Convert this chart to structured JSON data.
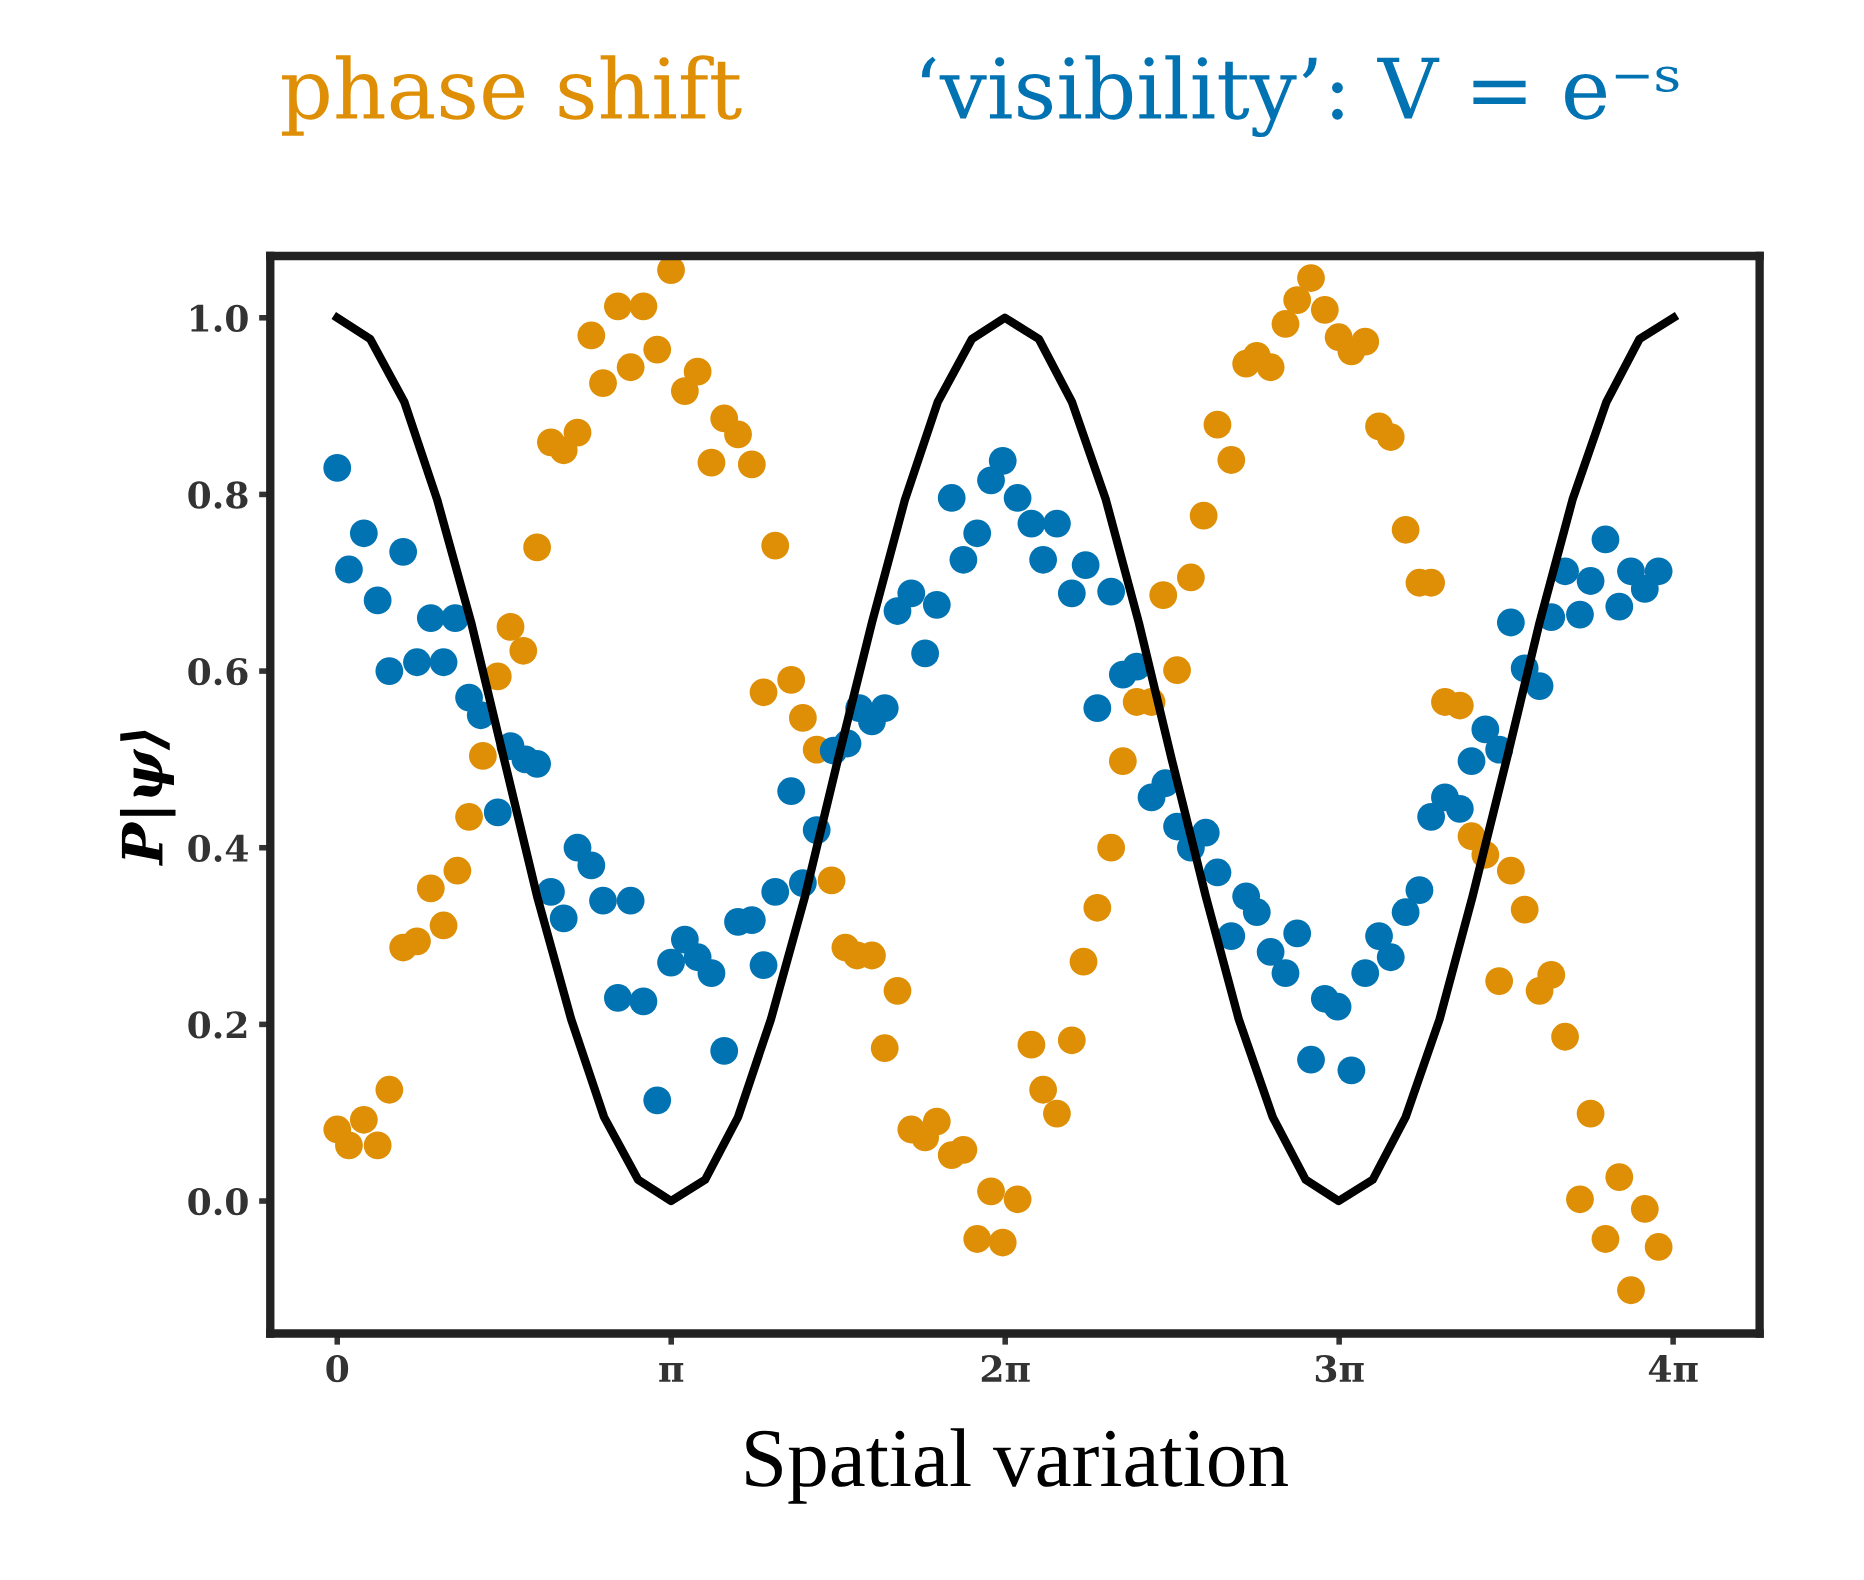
{
  "chart_data": {
    "type": "scatter",
    "xlabel": "Spatial variation",
    "ylabel": "P|ψ⟩",
    "xlim": [
      -0.63,
      13.38
    ],
    "ylim": [
      -0.15,
      1.07
    ],
    "xticks": [
      0,
      {
        "value": 3.1416,
        "label": "π"
      },
      {
        "value": 6.2832,
        "label": "2π"
      },
      {
        "value": 9.4248,
        "label": "3π"
      },
      {
        "value": 12.5664,
        "label": "4π"
      }
    ],
    "yticks": [
      {
        "value": 0,
        "label": "0.0"
      },
      0.2,
      0.4,
      0.6,
      0.8,
      {
        "value": 1,
        "label": "1.0"
      }
    ],
    "grid": false,
    "legend": false,
    "marker": "circle",
    "series": [
      {
        "name": "phase shift",
        "color": "#de8f05",
        "x": [
          0,
          0.11,
          0.25,
          0.38,
          0.49,
          0.62,
          0.75,
          0.88,
          1.0,
          1.13,
          1.24,
          1.37,
          1.51,
          1.63,
          1.75,
          1.88,
          2.01,
          2.13,
          2.26,
          2.39,
          2.5,
          2.64,
          2.76,
          2.88,
          3.01,
          3.14,
          3.27,
          3.39,
          3.52,
          3.64,
          3.77,
          3.9,
          4.01,
          4.12,
          4.27,
          4.38,
          4.51,
          4.65,
          4.78,
          4.89,
          5.03,
          5.15,
          5.27,
          5.4,
          5.53,
          5.64,
          5.78,
          5.89,
          6.02,
          6.15,
          6.26,
          6.4,
          6.53,
          6.64,
          6.77,
          6.91,
          7.02,
          7.15,
          7.28,
          7.39,
          7.52,
          7.66,
          7.77,
          7.9,
          8.03,
          8.15,
          8.28,
          8.41,
          8.55,
          8.65,
          8.78,
          8.92,
          9.03,
          9.16,
          9.29,
          9.42,
          9.54,
          9.67,
          9.8,
          9.91,
          10.05,
          10.18,
          10.29,
          10.42,
          10.56,
          10.67,
          10.8,
          10.93,
          11.04,
          11.17,
          11.31,
          11.42,
          11.55,
          11.69,
          11.79,
          11.93,
          12.06,
          12.17,
          12.3,
          12.43
        ],
        "values": [
          0.081,
          0.063,
          0.092,
          0.063,
          0.126,
          0.287,
          0.294,
          0.354,
          0.312,
          0.374,
          0.435,
          0.504,
          0.594,
          0.65,
          0.623,
          0.74,
          0.859,
          0.85,
          0.87,
          0.98,
          0.926,
          1.013,
          0.944,
          1.013,
          0.964,
          1.054,
          0.917,
          0.939,
          0.836,
          0.886,
          0.868,
          0.834,
          0.576,
          0.742,
          0.59,
          0.547,
          0.511,
          0.363,
          0.287,
          0.278,
          0.278,
          0.173,
          0.238,
          0.081,
          0.072,
          0.09,
          0.052,
          0.058,
          -0.043,
          0.011,
          -0.047,
          0.002,
          0.177,
          0.126,
          0.099,
          0.182,
          0.271,
          0.332,
          0.4,
          0.498,
          0.565,
          0.565,
          0.686,
          0.601,
          0.706,
          0.776,
          0.879,
          0.839,
          0.948,
          0.957,
          0.944,
          0.993,
          1.02,
          1.045,
          1.009,
          0.978,
          0.962,
          0.973,
          0.877,
          0.865,
          0.76,
          0.7,
          0.7,
          0.565,
          0.561,
          0.413,
          0.392,
          0.249,
          0.374,
          0.33,
          0.238,
          0.256,
          0.186,
          0.002,
          0.099,
          -0.043,
          0.027,
          -0.101,
          -0.009,
          -0.052
        ]
      },
      {
        "name": "‘visibility’: V = e⁻ˢ",
        "color": "#0173b2",
        "x": [
          0,
          0.11,
          0.25,
          0.38,
          0.49,
          0.62,
          0.75,
          0.88,
          1.0,
          1.11,
          1.24,
          1.35,
          1.51,
          1.63,
          1.77,
          1.88,
          2.01,
          2.13,
          2.26,
          2.39,
          2.5,
          2.64,
          2.76,
          2.88,
          3.01,
          3.14,
          3.27,
          3.39,
          3.52,
          3.64,
          3.77,
          3.9,
          4.01,
          4.12,
          4.27,
          4.38,
          4.51,
          4.67,
          4.8,
          4.91,
          5.03,
          5.15,
          5.27,
          5.4,
          5.53,
          5.64,
          5.78,
          5.89,
          6.02,
          6.15,
          6.26,
          6.4,
          6.53,
          6.64,
          6.77,
          6.91,
          7.04,
          7.15,
          7.28,
          7.39,
          7.52,
          7.66,
          7.79,
          7.9,
          8.03,
          8.17,
          8.28,
          8.41,
          8.55,
          8.65,
          8.78,
          8.92,
          9.03,
          9.16,
          9.29,
          9.41,
          9.54,
          9.67,
          9.8,
          9.91,
          10.05,
          10.18,
          10.29,
          10.42,
          10.56,
          10.67,
          10.8,
          10.93,
          11.04,
          11.17,
          11.31,
          11.42,
          11.55,
          11.69,
          11.79,
          11.93,
          12.06,
          12.17,
          12.3,
          12.43
        ],
        "values": [
          0.83,
          0.715,
          0.756,
          0.68,
          0.6,
          0.735,
          0.61,
          0.66,
          0.61,
          0.66,
          0.57,
          0.55,
          0.44,
          0.515,
          0.5,
          0.495,
          0.35,
          0.32,
          0.4,
          0.38,
          0.34,
          0.23,
          0.34,
          0.226,
          0.114,
          0.27,
          0.296,
          0.276,
          0.258,
          0.17,
          0.316,
          0.318,
          0.267,
          0.35,
          0.464,
          0.36,
          0.42,
          0.51,
          0.518,
          0.558,
          0.543,
          0.558,
          0.668,
          0.688,
          0.62,
          0.675,
          0.796,
          0.726,
          0.756,
          0.816,
          0.838,
          0.796,
          0.767,
          0.726,
          0.767,
          0.688,
          0.72,
          0.558,
          0.69,
          0.596,
          0.605,
          0.457,
          0.473,
          0.424,
          0.4,
          0.417,
          0.372,
          0.3,
          0.345,
          0.327,
          0.282,
          0.258,
          0.303,
          0.16,
          0.229,
          0.22,
          0.148,
          0.258,
          0.3,
          0.276,
          0.327,
          0.352,
          0.435,
          0.457,
          0.444,
          0.498,
          0.534,
          0.511,
          0.655,
          0.603,
          0.583,
          0.661,
          0.713,
          0.664,
          0.702,
          0.749,
          0.673,
          0.713,
          0.693,
          0.713
        ]
      },
      {
        "type": "line",
        "color": "#000000",
        "marker": "none",
        "x": [
          0,
          0.31,
          0.63,
          0.94,
          1.26,
          1.57,
          1.88,
          2.2,
          2.51,
          2.83,
          3.14,
          3.46,
          3.77,
          4.08,
          4.4,
          4.71,
          5.03,
          5.34,
          5.65,
          5.97,
          6.28,
          6.6,
          6.91,
          7.23,
          7.54,
          7.85,
          8.17,
          8.48,
          8.8,
          9.11,
          9.42,
          9.74,
          10.05,
          10.37,
          10.68,
          11.0,
          11.31,
          11.62,
          11.94,
          12.25,
          12.57
        ],
        "values": [
          1,
          0.976,
          0.905,
          0.794,
          0.655,
          0.5,
          0.345,
          0.206,
          0.095,
          0.024,
          0,
          0.024,
          0.095,
          0.206,
          0.345,
          0.5,
          0.655,
          0.794,
          0.905,
          0.976,
          1,
          0.976,
          0.905,
          0.794,
          0.655,
          0.5,
          0.345,
          0.206,
          0.095,
          0.024,
          0,
          0.024,
          0.095,
          0.206,
          0.345,
          0.5,
          0.655,
          0.794,
          0.905,
          0.976,
          1
        ]
      }
    ]
  }
}
